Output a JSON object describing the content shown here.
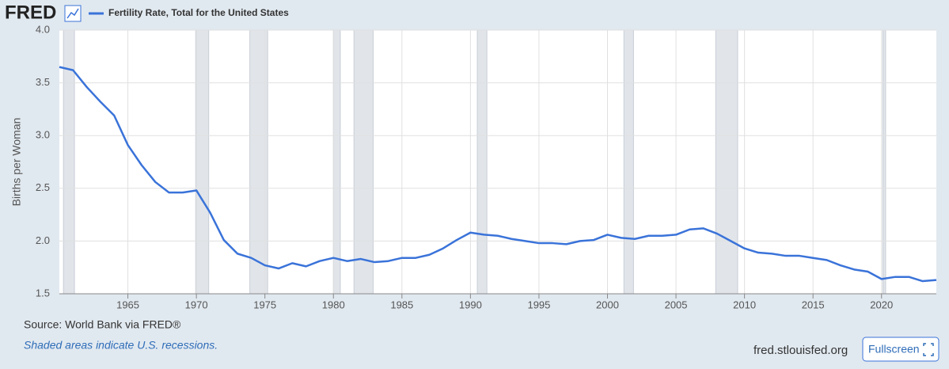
{
  "logo": "FRED",
  "source": "Source: World Bank via FRED®",
  "note": "Shaded areas indicate U.S. recessions.",
  "site": "fred.stlouisfed.org",
  "button": "Fullscreen",
  "chart_data": {
    "type": "line",
    "y_label": "Births per Woman",
    "x": [
      1960,
      1961,
      1962,
      1963,
      1964,
      1965,
      1966,
      1967,
      1968,
      1969,
      1970,
      1971,
      1972,
      1973,
      1974,
      1975,
      1976,
      1977,
      1978,
      1979,
      1980,
      1981,
      1982,
      1983,
      1984,
      1985,
      1986,
      1987,
      1988,
      1989,
      1990,
      1991,
      1992,
      1993,
      1994,
      1995,
      1996,
      1997,
      1998,
      1999,
      2000,
      2001,
      2002,
      2003,
      2004,
      2005,
      2006,
      2007,
      2008,
      2009,
      2010,
      2011,
      2012,
      2013,
      2014,
      2015,
      2016,
      2017,
      2018,
      2019,
      2020,
      2021,
      2022,
      2023,
      2024
    ],
    "series": [
      {
        "name": "Fertility Rate, Total for the United States",
        "color": "#3a73d9",
        "values": [
          3.65,
          3.62,
          3.46,
          3.32,
          3.19,
          2.91,
          2.72,
          2.56,
          2.46,
          2.46,
          2.48,
          2.27,
          2.01,
          1.88,
          1.84,
          1.77,
          1.74,
          1.79,
          1.76,
          1.81,
          1.84,
          1.81,
          1.83,
          1.8,
          1.81,
          1.84,
          1.84,
          1.87,
          1.93,
          2.01,
          2.08,
          2.06,
          2.05,
          2.02,
          2.0,
          1.98,
          1.98,
          1.97,
          2.0,
          2.01,
          2.06,
          2.03,
          2.02,
          2.05,
          2.05,
          2.06,
          2.11,
          2.12,
          2.07,
          2.0,
          1.93,
          1.89,
          1.88,
          1.86,
          1.86,
          1.84,
          1.82,
          1.77,
          1.73,
          1.71,
          1.64,
          1.66,
          1.66,
          1.62,
          1.63
        ]
      }
    ],
    "xlim": [
      1960,
      2024
    ],
    "ylim": [
      1.5,
      4.0
    ],
    "xticks": [
      1965,
      1970,
      1975,
      1980,
      1985,
      1990,
      1995,
      2000,
      2005,
      2010,
      2015,
      2020
    ],
    "yticks": [
      1.5,
      {
        "value": 2,
        "label": "2.0"
      },
      2.5,
      {
        "value": 3,
        "label": "3.0"
      },
      3.5,
      {
        "value": 4,
        "label": "4.0"
      }
    ],
    "grid": true,
    "recessions": [
      [
        1960.3,
        1961.1
      ],
      [
        1969.95,
        1970.9
      ],
      [
        1973.9,
        1975.2
      ],
      [
        1980.0,
        1980.5
      ],
      [
        1981.5,
        1982.9
      ],
      [
        1990.5,
        1991.2
      ],
      [
        2001.2,
        2001.9
      ],
      [
        2007.9,
        2009.5
      ],
      [
        2020.1,
        2020.3
      ]
    ]
  }
}
